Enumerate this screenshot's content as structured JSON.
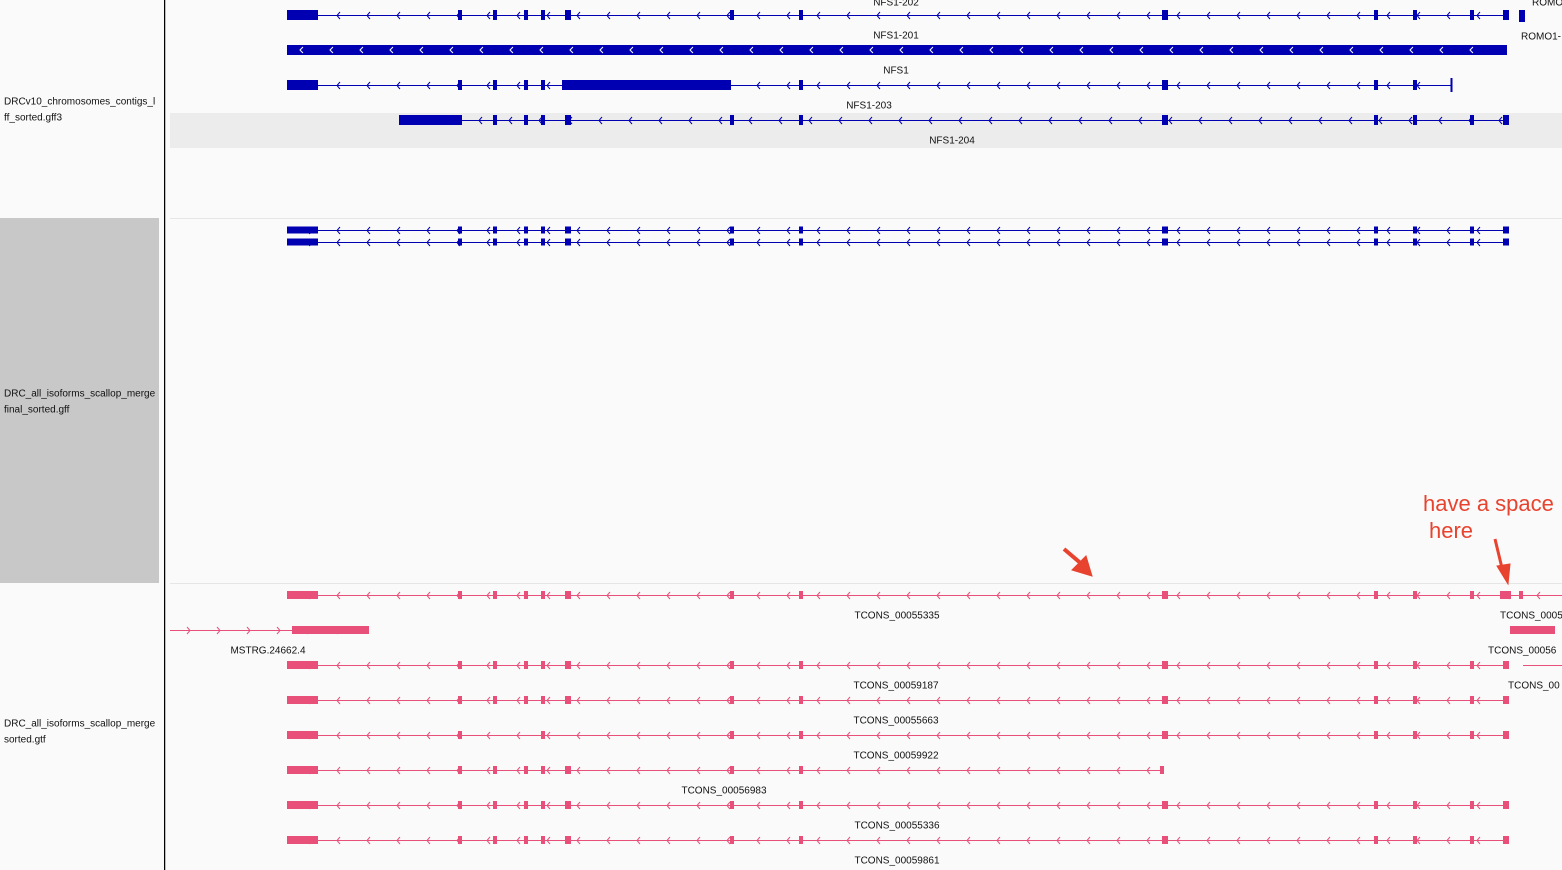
{
  "tracks": [
    {
      "name_lines": [
        "DRCv10_chromosomes_contigs_l",
        "ff_sorted.gff3"
      ]
    },
    {
      "name_lines": [
        "DRC_all_isoforms_scallop_merge",
        "final_sorted.gff"
      ]
    },
    {
      "name_lines": [
        "DRC_all_isoforms_scallop_merge",
        "sorted.gtf"
      ]
    }
  ],
  "feature_labels": [
    "NFS1-202",
    "ROMO",
    "NFS1-201",
    "ROMO1-",
    "NFS1",
    "NFS1-203",
    "NFS1-204",
    "TCONS_00055335",
    "TCONS_0005",
    "MSTRG.24662.4",
    "TCONS_00056",
    "TCONS_00059187",
    "TCONS_00",
    "TCONS_00055663",
    "TCONS_00059922",
    "TCONS_00056983",
    "TCONS_00055336",
    "TCONS_00059861"
  ],
  "annotation": {
    "lines": [
      "have a space",
      "here"
    ]
  }
}
